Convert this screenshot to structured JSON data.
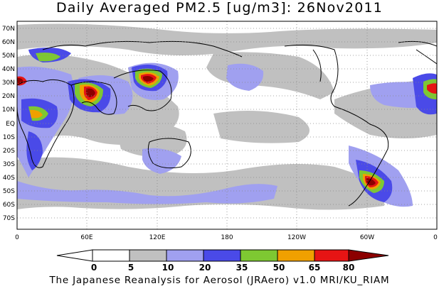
{
  "title": "Daily Averaged PM2.5 [ug/m3]: 26Nov2011",
  "footer": "The Japanese Reanalysis for Aerosol (JRAero) v1.0 MRI/KU_RIAM",
  "lat_labels": [
    "70N",
    "60N",
    "50N",
    "40N",
    "30N",
    "20N",
    "10N",
    "EQ",
    "10S",
    "20S",
    "30S",
    "40S",
    "50S",
    "60S",
    "70S"
  ],
  "lon_labels": [
    "0",
    "60E",
    "120E",
    "180",
    "120W",
    "60W",
    "0"
  ],
  "colorbar": {
    "ticks": [
      "0",
      "5",
      "10",
      "20",
      "35",
      "50",
      "65",
      "80"
    ],
    "colors": [
      "#ffffff",
      "#c0c0c0",
      "#a0a0f0",
      "#4a4ae8",
      "#7ec832",
      "#f0a000",
      "#e61414",
      "#8c0000"
    ]
  }
}
